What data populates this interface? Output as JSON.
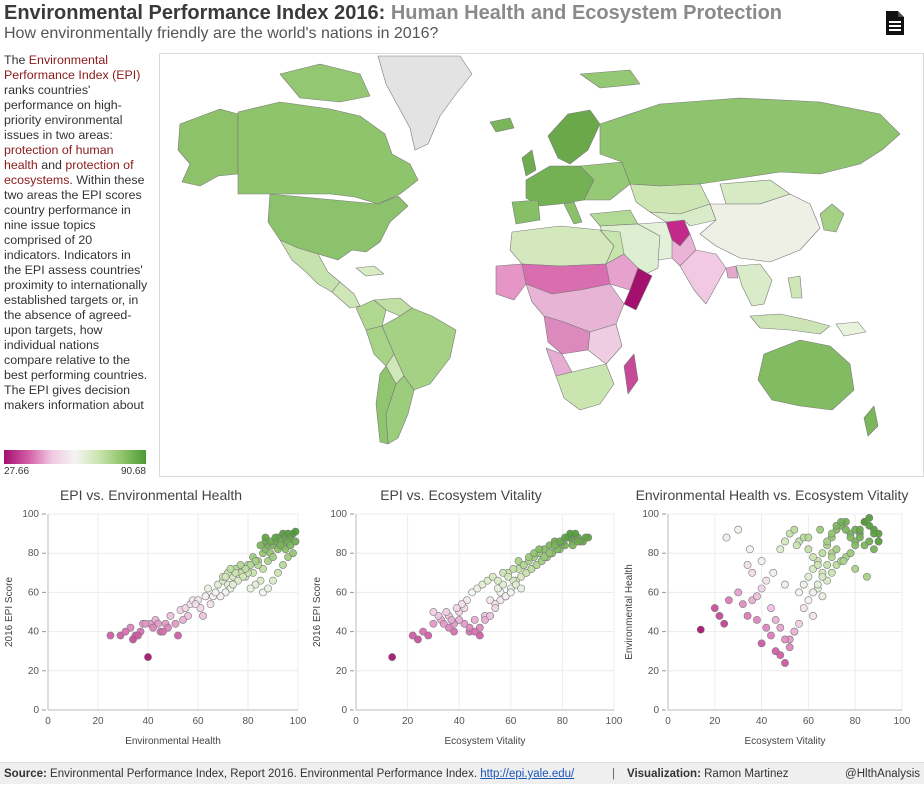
{
  "header": {
    "title_main": "Environmental Performance Index 2016:",
    "title_sub": "Human Health and Ecosystem Protection",
    "subtitle": "How environmentally friendly are the world's  nations in 2016?",
    "doc_icon": "document-icon"
  },
  "sidebar": {
    "p1": "The ",
    "link_epi": "Environmental Performance Index (EPI)",
    "p2": " ranks countries' performance on high-priority environmental issues in two areas: ",
    "link_health": "protection of human health",
    "p3": " and ",
    "link_eco": "protection of ecosystems",
    "p4": ". Within these two areas the EPI scores country performance in nine issue topics comprised of 20 indicators. Indicators in the EPI assess countries' proximity to internationally established targets or, in the absence of agreed-upon targets, how individual nations compare relative to the best performing countries.",
    "p5": "The EPI gives decision makers information about"
  },
  "legend": {
    "min_label": "27.66",
    "max_label": "90.68",
    "min_value": 27.66,
    "max_value": 90.68,
    "colors": [
      "#a4106e",
      "#d25aa6",
      "#f0c7e2",
      "#f4f4f2",
      "#cbe5b0",
      "#8fc46b",
      "#4c9a33"
    ]
  },
  "map": {
    "description_regions": [
      {
        "name": "Canada",
        "score": 85
      },
      {
        "name": "United States",
        "score": 84
      },
      {
        "name": "Mexico",
        "score": 78
      },
      {
        "name": "Brazil",
        "score": 78
      },
      {
        "name": "Argentina",
        "score": 79
      },
      {
        "name": "Greenland",
        "score": null
      },
      {
        "name": "Europe",
        "score": 86
      },
      {
        "name": "Russia",
        "score": 84
      },
      {
        "name": "China",
        "score": 66
      },
      {
        "name": "India",
        "score": 54
      },
      {
        "name": "Afghanistan",
        "score": 37
      },
      {
        "name": "Somalia",
        "score": 28
      },
      {
        "name": "Madagascar",
        "score": 42
      },
      {
        "name": "Sahel",
        "score": 40
      },
      {
        "name": "Southern Africa",
        "score": 72
      },
      {
        "name": "Australia",
        "score": 87
      },
      {
        "name": "Indonesia",
        "score": 65
      }
    ]
  },
  "charts": [
    {
      "chart_data": {
        "type": "scatter",
        "title": "EPI vs. Environmental Health",
        "xlabel": "Environmental Health",
        "ylabel": "2016 EPI Score",
        "xlim": [
          0,
          100
        ],
        "ylim": [
          0,
          100
        ],
        "xticks": [
          "0",
          "20",
          "40",
          "60",
          "80",
          "100"
        ],
        "yticks": [
          "0",
          "20",
          "40",
          "60",
          "80",
          "100"
        ],
        "x": [
          40,
          25,
          29,
          33,
          35,
          38,
          41,
          43,
          45,
          47,
          49,
          52,
          53,
          55,
          57,
          58,
          60,
          62,
          64,
          66,
          68,
          70,
          72,
          74,
          76,
          78,
          80,
          82,
          84,
          86,
          87,
          88,
          89,
          90,
          91,
          92,
          93,
          94,
          95,
          96,
          97,
          98,
          99,
          85,
          83,
          81,
          79,
          77,
          75,
          73,
          71,
          69,
          67,
          65,
          63,
          61,
          59,
          56,
          54,
          51,
          48,
          46,
          44,
          42,
          39,
          37,
          36,
          34,
          31,
          88,
          90,
          92,
          94,
          96,
          86,
          84,
          82,
          80,
          78,
          76,
          74,
          72,
          70,
          87,
          89,
          91,
          93,
          95,
          97,
          99,
          83,
          81,
          79,
          77,
          75,
          73,
          71,
          86,
          88,
          90,
          92,
          94,
          96,
          98,
          85,
          87
        ],
        "y": [
          27,
          38,
          38,
          42,
          38,
          44,
          44,
          46,
          40,
          44,
          48,
          38,
          51,
          52,
          54,
          56,
          56,
          48,
          62,
          58,
          64,
          66,
          64,
          68,
          72,
          70,
          74,
          78,
          76,
          80,
          82,
          84,
          80,
          84,
          86,
          88,
          86,
          90,
          88,
          90,
          88,
          90,
          91,
          66,
          64,
          62,
          68,
          70,
          72,
          62,
          60,
          58,
          60,
          54,
          58,
          52,
          54,
          48,
          46,
          44,
          42,
          40,
          44,
          42,
          44,
          40,
          38,
          36,
          40,
          76,
          78,
          82,
          84,
          86,
          72,
          74,
          70,
          70,
          68,
          66,
          64,
          70,
          68,
          86,
          86,
          88,
          84,
          82,
          84,
          86,
          76,
          74,
          72,
          74,
          70,
          72,
          68,
          60,
          62,
          66,
          70,
          74,
          78,
          80,
          84,
          88
        ]
      }
    },
    {
      "chart_data": {
        "type": "scatter",
        "title": "EPI vs. Ecosystem Vitality",
        "xlabel": "Ecosystem Vitality",
        "ylabel": "2016 EPI Score",
        "xlim": [
          0,
          100
        ],
        "ylim": [
          0,
          100
        ],
        "xticks": [
          "0",
          "20",
          "40",
          "60",
          "80",
          "100"
        ],
        "yticks": [
          "0",
          "20",
          "40",
          "60",
          "80",
          "100"
        ],
        "x": [
          14,
          22,
          24,
          26,
          30,
          33,
          36,
          38,
          40,
          42,
          44,
          46,
          48,
          50,
          52,
          54,
          56,
          58,
          60,
          62,
          64,
          66,
          68,
          70,
          72,
          74,
          76,
          78,
          80,
          82,
          84,
          86,
          88,
          90,
          45,
          47,
          49,
          51,
          53,
          55,
          57,
          59,
          61,
          63,
          65,
          67,
          69,
          71,
          73,
          75,
          77,
          79,
          81,
          83,
          85,
          87,
          89,
          43,
          41,
          39,
          37,
          35,
          50,
          52,
          54,
          56,
          58,
          60,
          62,
          64,
          66,
          68,
          70,
          72,
          74,
          76,
          78,
          80,
          82,
          84,
          86,
          48,
          46,
          44,
          42,
          40,
          38,
          36,
          34,
          32,
          30,
          28,
          55,
          57,
          59,
          61,
          63,
          65,
          67,
          69,
          71,
          73,
          75,
          77,
          79,
          81,
          83
        ],
        "y": [
          27,
          38,
          36,
          40,
          44,
          46,
          48,
          44,
          50,
          52,
          40,
          46,
          42,
          48,
          56,
          54,
          60,
          58,
          62,
          66,
          68,
          70,
          72,
          74,
          76,
          78,
          80,
          82,
          84,
          88,
          86,
          88,
          86,
          88,
          60,
          62,
          64,
          66,
          68,
          62,
          64,
          70,
          66,
          72,
          74,
          76,
          78,
          80,
          82,
          84,
          86,
          82,
          84,
          88,
          90,
          86,
          88,
          56,
          54,
          52,
          46,
          50,
          46,
          48,
          52,
          56,
          58,
          60,
          64,
          62,
          70,
          72,
          74,
          76,
          78,
          80,
          82,
          86,
          88,
          84,
          86,
          38,
          40,
          42,
          44,
          46,
          40,
          42,
          44,
          48,
          50,
          38,
          66,
          70,
          68,
          72,
          76,
          74,
          78,
          80,
          82,
          78,
          80,
          84,
          86,
          88,
          90
        ]
      }
    },
    {
      "chart_data": {
        "type": "scatter",
        "title": "Environmental Health vs. Ecosystem Vitality",
        "xlabel": "Ecosystem Vitality",
        "ylabel": "Environmental Health",
        "xlim": [
          0,
          100
        ],
        "ylim": [
          0,
          100
        ],
        "xticks": [
          "0",
          "20",
          "40",
          "60",
          "80",
          "100"
        ],
        "yticks": [
          "0",
          "20",
          "40",
          "60",
          "80",
          "100"
        ],
        "x": [
          14,
          20,
          22,
          24,
          26,
          30,
          32,
          34,
          36,
          38,
          40,
          42,
          44,
          46,
          48,
          50,
          52,
          54,
          56,
          58,
          60,
          62,
          64,
          66,
          68,
          70,
          72,
          74,
          76,
          78,
          80,
          82,
          84,
          86,
          88,
          90,
          44,
          46,
          48,
          50,
          52,
          54,
          40,
          42,
          38,
          36,
          34,
          56,
          58,
          60,
          62,
          64,
          66,
          68,
          70,
          72,
          74,
          76,
          78,
          80,
          82,
          84,
          86,
          88,
          48,
          50,
          52,
          54,
          56,
          58,
          60,
          62,
          64,
          66,
          68,
          70,
          72,
          74,
          76,
          78,
          80,
          82,
          84,
          86,
          88,
          90,
          25,
          30,
          35,
          40,
          45,
          50,
          55,
          60,
          65,
          70,
          75,
          80,
          85,
          90,
          62,
          64,
          66,
          68,
          70,
          72
        ],
        "y": [
          41,
          52,
          48,
          44,
          56,
          60,
          54,
          48,
          56,
          46,
          34,
          42,
          38,
          30,
          28,
          24,
          36,
          40,
          44,
          52,
          56,
          48,
          62,
          58,
          66,
          70,
          74,
          76,
          78,
          80,
          86,
          90,
          96,
          98,
          92,
          90,
          52,
          46,
          42,
          36,
          32,
          40,
          62,
          66,
          58,
          70,
          74,
          60,
          64,
          68,
          72,
          76,
          80,
          84,
          88,
          92,
          94,
          96,
          90,
          92,
          88,
          84,
          86,
          82,
          82,
          86,
          90,
          92,
          86,
          88,
          82,
          78,
          74,
          70,
          86,
          90,
          94,
          96,
          92,
          88,
          84,
          92,
          96,
          94,
          90,
          86,
          88,
          92,
          82,
          76,
          70,
          64,
          84,
          88,
          92,
          80,
          76,
          72,
          68,
          86,
          60,
          64,
          68,
          74,
          78,
          82
        ]
      }
    }
  ],
  "footer": {
    "source_label": "Source:",
    "source_text": " Environmental Performance Index, Report 2016. Environmental Performance Index. ",
    "source_link": "http://epi.yale.edu/",
    "separator": "|",
    "viz_label": "Visualization:",
    "viz_text": "  Ramon Martinez",
    "handle": "@HlthAnalysis"
  }
}
